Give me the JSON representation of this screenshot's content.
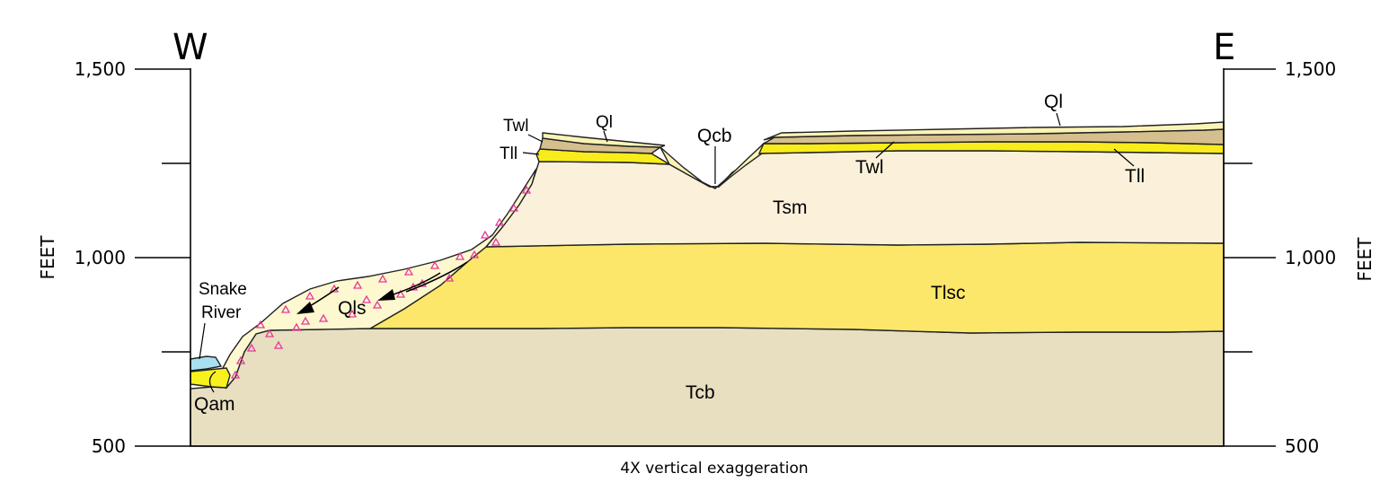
{
  "directions": {
    "west": "W",
    "east": "E"
  },
  "axis": {
    "unit_label": "FEET",
    "tick_labels_left": [
      "1,500",
      "1,000",
      "500"
    ],
    "tick_labels_right": [
      "1,500",
      "1,000",
      "500"
    ],
    "range_feet": [
      500,
      1500
    ],
    "labeled_ticks_feet": [
      1500,
      1000,
      500
    ]
  },
  "caption": "4X vertical exaggeration",
  "river_label": "Snake\nRiver",
  "units": {
    "Ql_west": "Ql",
    "Ql_east": "Ql",
    "Twl_west": "Twl",
    "Twl_east": "Twl",
    "Tll_west": "Tll",
    "Tll_east": "Tll",
    "Qcb": "Qcb",
    "Tsm": "Tsm",
    "Tlsc": "Tlsc",
    "Qls": "Qls",
    "Tcb": "Tcb",
    "Qam": "Qam",
    "Snake_River_line1": "Snake",
    "Snake_River_line2": "River"
  },
  "colors": {
    "Tcb": "#e8dfc0",
    "Tlsc": "#fce76a",
    "Tsm": "#fbf1da",
    "Tll": "#f8ec1a",
    "Twl": "#d6bf8e",
    "Ql": "#fbf3b6",
    "Qls": "#fdf8cf",
    "Qls_triangles": "#e9389a",
    "Qam": "#f8f11e",
    "river": "#a9e0f1"
  }
}
